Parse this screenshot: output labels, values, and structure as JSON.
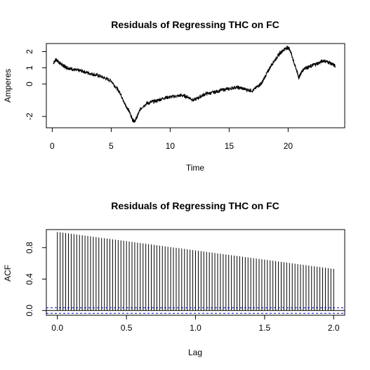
{
  "chart_data": [
    {
      "type": "line",
      "title": "Residuals of Regressing THC on FC",
      "xlabel": "Time",
      "ylabel": "Amperes",
      "xlim": [
        -0.5,
        24.8
      ],
      "ylim": [
        -2.7,
        2.5
      ],
      "x_ticks": [
        0,
        5,
        10,
        15,
        20
      ],
      "x_tick_labels": [
        "0",
        "5",
        "10",
        "15",
        "20"
      ],
      "y_ticks": [
        -2,
        0,
        1,
        2
      ],
      "y_tick_labels": [
        "-2",
        "0",
        "1",
        "2"
      ],
      "grid": false,
      "series": [
        {
          "line_color": "#000000",
          "x": [
            0.1,
            0.3,
            0.5,
            0.8,
            1.0,
            1.3,
            1.6,
            2.0,
            2.5,
            3.0,
            3.5,
            4.0,
            4.5,
            5.0,
            5.5,
            5.8,
            6.0,
            6.3,
            6.6,
            6.8,
            7.0,
            7.2,
            7.5,
            8.0,
            8.5,
            9.0,
            9.5,
            10.0,
            10.5,
            11.0,
            11.5,
            12.0,
            12.5,
            13.0,
            13.5,
            14.0,
            14.5,
            15.0,
            15.5,
            16.0,
            16.5,
            17.0,
            17.5,
            17.8,
            18.0,
            18.3,
            18.6,
            19.0,
            19.3,
            19.6,
            19.9,
            20.1,
            20.3,
            20.5,
            20.7,
            20.9,
            21.1,
            21.4,
            21.8,
            22.2,
            22.6,
            23.0,
            23.4,
            23.8,
            24.0
          ],
          "y": [
            1.3,
            1.5,
            1.4,
            1.2,
            1.1,
            1.0,
            0.95,
            0.85,
            0.8,
            0.7,
            0.6,
            0.5,
            0.35,
            0.2,
            -0.3,
            -0.6,
            -1.0,
            -1.4,
            -1.8,
            -2.2,
            -2.3,
            -2.0,
            -1.5,
            -1.2,
            -1.1,
            -1.0,
            -0.85,
            -0.8,
            -0.75,
            -0.7,
            -0.8,
            -1.0,
            -0.8,
            -0.6,
            -0.55,
            -0.45,
            -0.35,
            -0.3,
            -0.2,
            -0.25,
            -0.35,
            -0.4,
            -0.1,
            0.1,
            0.4,
            0.8,
            1.2,
            1.6,
            1.9,
            2.1,
            2.25,
            2.2,
            1.8,
            1.3,
            0.9,
            0.4,
            0.7,
            1.0,
            1.05,
            1.2,
            1.3,
            1.45,
            1.35,
            1.2,
            1.1
          ]
        }
      ]
    },
    {
      "type": "bar",
      "title": "Residuals of Regressing THC on FC",
      "xlabel": "Lag",
      "ylabel": "ACF",
      "xlim": [
        -0.08,
        2.08
      ],
      "ylim": [
        -0.06,
        1.03
      ],
      "x_ticks": [
        0,
        0.5,
        1,
        1.5,
        2
      ],
      "x_tick_labels": [
        "0.0",
        "0.5",
        "1.0",
        "1.5",
        "2.0"
      ],
      "y_ticks": [
        0,
        0.4,
        0.8
      ],
      "y_tick_labels": [
        "0.0",
        "0.4",
        "0.8"
      ],
      "grid": false,
      "lag_start": 0,
      "lag_step": 0.02,
      "lag_count": 101,
      "acf_at_lag0": 1.0,
      "acf_at_lag2": 0.53,
      "confidence_bounds": [
        0.035,
        -0.035
      ],
      "bar_color": "#000000",
      "bound_color": "#0000cc"
    }
  ]
}
